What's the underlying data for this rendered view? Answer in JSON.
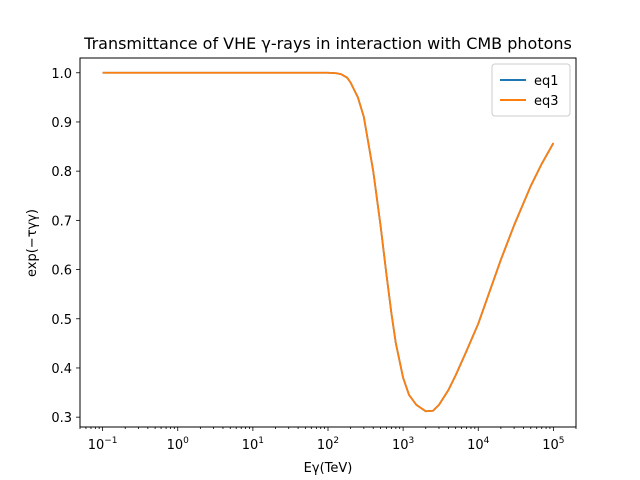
{
  "chart_data": {
    "type": "line",
    "title": "Transmittance of VHE γ-rays in interaction with CMB photons",
    "xlabel": "Eγ(TeV)",
    "ylabel": "exp(−τγγ)",
    "xscale": "log",
    "xlim": [
      0.05,
      200000
    ],
    "ylim": [
      0.28,
      1.03
    ],
    "xticks": [
      {
        "value": 0.1,
        "base": "10",
        "exp": "−1"
      },
      {
        "value": 1,
        "base": "10",
        "exp": "0"
      },
      {
        "value": 10,
        "base": "10",
        "exp": "1"
      },
      {
        "value": 100,
        "base": "10",
        "exp": "2"
      },
      {
        "value": 1000,
        "base": "10",
        "exp": "3"
      },
      {
        "value": 10000,
        "base": "10",
        "exp": "4"
      },
      {
        "value": 100000,
        "base": "10",
        "exp": "5"
      }
    ],
    "yticks": [
      "0.3",
      "0.4",
      "0.5",
      "0.6",
      "0.7",
      "0.8",
      "0.9",
      "1.0"
    ],
    "grid": false,
    "legend_position": "top-right",
    "series": [
      {
        "name": "eq1",
        "color": "#1f77b4",
        "x": [
          0.1,
          1,
          10,
          100,
          130,
          150,
          180,
          200,
          250,
          300,
          400,
          500,
          600,
          700,
          800,
          1000,
          1200,
          1500,
          2000,
          2500,
          3000,
          4000,
          5000,
          7000,
          10000,
          20000,
          30000,
          50000,
          70000,
          100000
        ],
        "y": [
          1.0,
          1.0,
          1.0,
          1.0,
          0.999,
          0.997,
          0.99,
          0.98,
          0.95,
          0.91,
          0.8,
          0.69,
          0.59,
          0.51,
          0.45,
          0.38,
          0.345,
          0.325,
          0.312,
          0.313,
          0.325,
          0.355,
          0.385,
          0.435,
          0.49,
          0.62,
          0.69,
          0.77,
          0.815,
          0.857
        ]
      },
      {
        "name": "eq3",
        "color": "#ff7f0e",
        "x": [
          0.1,
          1,
          10,
          100,
          130,
          150,
          180,
          200,
          250,
          300,
          400,
          500,
          600,
          700,
          800,
          1000,
          1200,
          1500,
          2000,
          2500,
          3000,
          4000,
          5000,
          7000,
          10000,
          20000,
          30000,
          50000,
          70000,
          100000
        ],
        "y": [
          1.0,
          1.0,
          1.0,
          1.0,
          0.999,
          0.997,
          0.99,
          0.98,
          0.95,
          0.91,
          0.8,
          0.69,
          0.59,
          0.51,
          0.45,
          0.38,
          0.345,
          0.325,
          0.312,
          0.313,
          0.325,
          0.355,
          0.385,
          0.435,
          0.49,
          0.62,
          0.69,
          0.77,
          0.815,
          0.857
        ]
      }
    ]
  }
}
